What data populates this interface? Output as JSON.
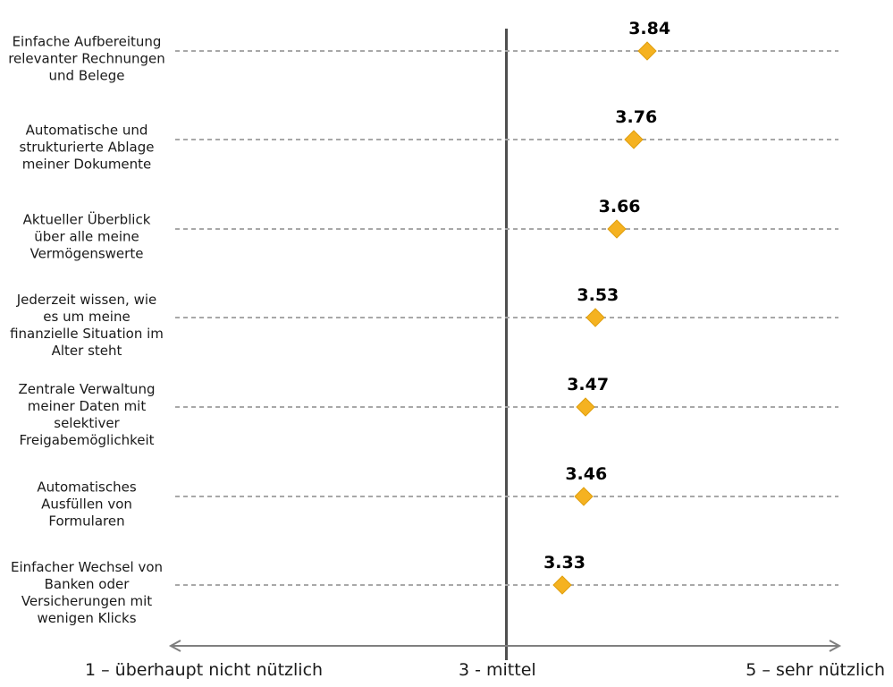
{
  "chart_data": {
    "type": "scatter",
    "subtype": "horizontal-dot-plot",
    "title": "",
    "categories": [
      "Einfache Aufbereitung\nrelevanter Rechnungen\nund Belege",
      "Automatische und\nstrukturierte Ablage\nmeiner Dokumente",
      "Aktueller Überblick\nüber alle meine\nVermögenswerte",
      "Jederzeit wissen, wie\nes um meine\nfinanzielle Situation im\nAlter steht",
      "Zentrale Verwaltung\nmeiner Daten mit\nselektiver\nFreigabemöglichkeit",
      "Automatisches\nAusfüllen von\nFormularen",
      "Einfacher Wechsel von\nBanken oder\nVersicherungen mit\nwenigen Klicks"
    ],
    "values": [
      3.84,
      3.76,
      3.66,
      3.53,
      3.47,
      3.46,
      3.33
    ],
    "value_labels": [
      "3.84",
      "3.76",
      "3.66",
      "3.53",
      "3.47",
      "3.46",
      "3.33"
    ],
    "xlim": [
      1,
      5
    ],
    "x_axis_ticks": [
      {
        "value": 1,
        "label": "1 – überhaupt nicht nützlich"
      },
      {
        "value": 3,
        "label": "3 - mittel"
      },
      {
        "value": 5,
        "label": "5 – sehr nützlich"
      }
    ],
    "reference_line_x": 3,
    "marker": "diamond",
    "grid": "dashed horizontal leader lines per category",
    "legend": "none",
    "colors": {
      "marker": "#F5B220",
      "marker_border": "#DFA013",
      "leader_line": "#A8A8A8",
      "axis": "#7F7F7F",
      "reference_line": "#4F4F4F",
      "text": "#1A1A1A"
    }
  }
}
